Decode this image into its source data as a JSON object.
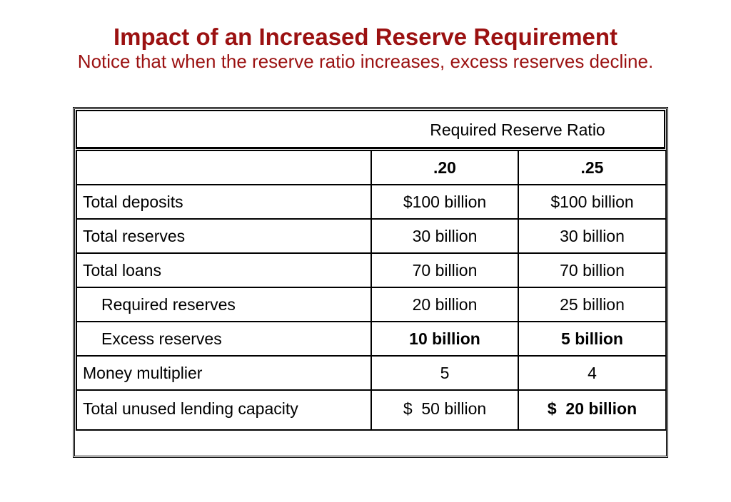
{
  "title": "Impact of an Increased Reserve Requirement",
  "subtitle": "Notice that when the reserve ratio increases, excess reserves decline.",
  "table": {
    "header_label": "Required Reserve Ratio",
    "columns": [
      ".20",
      ".25"
    ],
    "rows": [
      {
        "label": "Total deposits",
        "v1": "$100 billion",
        "v2": "$100 billion"
      },
      {
        "label": "Total reserves",
        "v1": "30 billion",
        "v2": "30 billion"
      },
      {
        "label": "Total loans",
        "v1": "70 billion",
        "v2": "70 billion"
      },
      {
        "label": "Required reserves",
        "v1": "20 billion",
        "v2": "25 billion"
      },
      {
        "label": "Excess reserves",
        "v1": "10 billion",
        "v2": "5 billion"
      },
      {
        "label": "Money multiplier",
        "v1": "5",
        "v2": "4"
      },
      {
        "label": "Total unused lending capacity",
        "v1": "$  50 billion",
        "v2": "$  20 billion"
      }
    ]
  },
  "colors": {
    "title": "#9b1111",
    "text": "#000000",
    "border": "#000000"
  }
}
